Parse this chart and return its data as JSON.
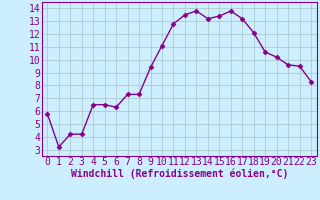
{
  "x": [
    0,
    1,
    2,
    3,
    4,
    5,
    6,
    7,
    8,
    9,
    10,
    11,
    12,
    13,
    14,
    15,
    16,
    17,
    18,
    19,
    20,
    21,
    22,
    23
  ],
  "y": [
    5.8,
    3.2,
    4.2,
    4.2,
    6.5,
    6.5,
    6.3,
    7.3,
    7.3,
    9.4,
    11.1,
    12.8,
    13.5,
    13.8,
    13.2,
    13.4,
    13.8,
    13.2,
    12.1,
    10.6,
    10.2,
    9.6,
    9.5,
    8.3
  ],
  "line_color": "#880088",
  "marker": "D",
  "marker_size": 2.5,
  "bg_color": "#cceeff",
  "grid_color": "#aacccc",
  "xlabel": "Windchill (Refroidissement éolien,°C)",
  "xlim": [
    -0.5,
    23.5
  ],
  "ylim": [
    2.5,
    14.5
  ],
  "yticks": [
    3,
    4,
    5,
    6,
    7,
    8,
    9,
    10,
    11,
    12,
    13,
    14
  ],
  "xticks": [
    0,
    1,
    2,
    3,
    4,
    5,
    6,
    7,
    8,
    9,
    10,
    11,
    12,
    13,
    14,
    15,
    16,
    17,
    18,
    19,
    20,
    21,
    22,
    23
  ],
  "tick_label_color": "#880088",
  "xlabel_color": "#880088",
  "xlabel_fontsize": 7,
  "tick_fontsize": 7,
  "linewidth": 1.0
}
